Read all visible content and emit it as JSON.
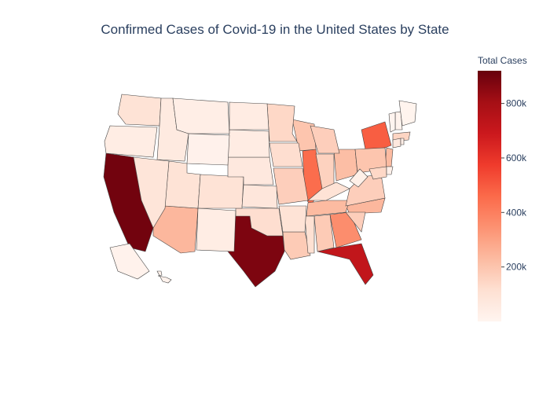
{
  "title": "Confirmed Cases of Covid-19 in the United States by State",
  "colorbar": {
    "title": "Total Cases",
    "ticks": [
      "200k",
      "400k",
      "600k",
      "800k"
    ],
    "tick_values": [
      200000,
      400000,
      600000,
      800000
    ],
    "range": [
      0,
      920000
    ],
    "colorscale": [
      "#fff5f0",
      "#fee0d2",
      "#fcbba1",
      "#fc9272",
      "#fb6a4a",
      "#ef3b2c",
      "#cb181d",
      "#a50f15",
      "#67000d"
    ]
  },
  "chart_data": {
    "type": "choropleth",
    "title": "Confirmed Cases of Covid-19 in the United States by State",
    "colorbar_title": "Total Cases",
    "states": [
      {
        "state": "CA",
        "cases": 900000
      },
      {
        "state": "TX",
        "cases": 880000
      },
      {
        "state": "FL",
        "cases": 720000
      },
      {
        "state": "NY",
        "cases": 490000
      },
      {
        "state": "IL",
        "cases": 450000
      },
      {
        "state": "GA",
        "cases": 360000
      },
      {
        "state": "AZ",
        "cases": 240000
      },
      {
        "state": "NC",
        "cases": 240000
      },
      {
        "state": "TN",
        "cases": 230000
      },
      {
        "state": "NJ",
        "cases": 230000
      },
      {
        "state": "OH",
        "cases": 220000
      },
      {
        "state": "WI",
        "cases": 200000
      },
      {
        "state": "PA",
        "cases": 200000
      },
      {
        "state": "LA",
        "cases": 180000
      },
      {
        "state": "AL",
        "cases": 180000
      },
      {
        "state": "SC",
        "cases": 170000
      },
      {
        "state": "MO",
        "cases": 170000
      },
      {
        "state": "IN",
        "cases": 160000
      },
      {
        "state": "VA",
        "cases": 170000
      },
      {
        "state": "MI",
        "cases": 170000
      },
      {
        "state": "MN",
        "cases": 140000
      },
      {
        "state": "MA",
        "cases": 150000
      },
      {
        "state": "IA",
        "cases": 120000
      },
      {
        "state": "MD",
        "cases": 140000
      },
      {
        "state": "OK",
        "cases": 120000
      },
      {
        "state": "MS",
        "cases": 110000
      },
      {
        "state": "AR",
        "cases": 100000
      },
      {
        "state": "UT",
        "cases": 100000
      },
      {
        "state": "WA",
        "cases": 100000
      },
      {
        "state": "CO",
        "cases": 100000
      },
      {
        "state": "KY",
        "cases": 100000
      },
      {
        "state": "NV",
        "cases": 90000
      },
      {
        "state": "KS",
        "cases": 80000
      },
      {
        "state": "NE",
        "cases": 70000
      },
      {
        "state": "ID",
        "cases": 60000
      },
      {
        "state": "CT",
        "cases": 70000
      },
      {
        "state": "OR",
        "cases": 45000
      },
      {
        "state": "NM",
        "cases": 45000
      },
      {
        "state": "SD",
        "cases": 50000
      },
      {
        "state": "ND",
        "cases": 50000
      },
      {
        "state": "MT",
        "cases": 40000
      },
      {
        "state": "WV",
        "cases": 30000
      },
      {
        "state": "RI",
        "cases": 40000
      },
      {
        "state": "DE",
        "cases": 25000
      },
      {
        "state": "WY",
        "cases": 20000
      },
      {
        "state": "AK",
        "cases": 15000
      },
      {
        "state": "NH",
        "cases": 12000
      },
      {
        "state": "ME",
        "cases": 8000
      },
      {
        "state": "HI",
        "cases": 15000
      },
      {
        "state": "VT",
        "cases": 3000
      }
    ]
  }
}
